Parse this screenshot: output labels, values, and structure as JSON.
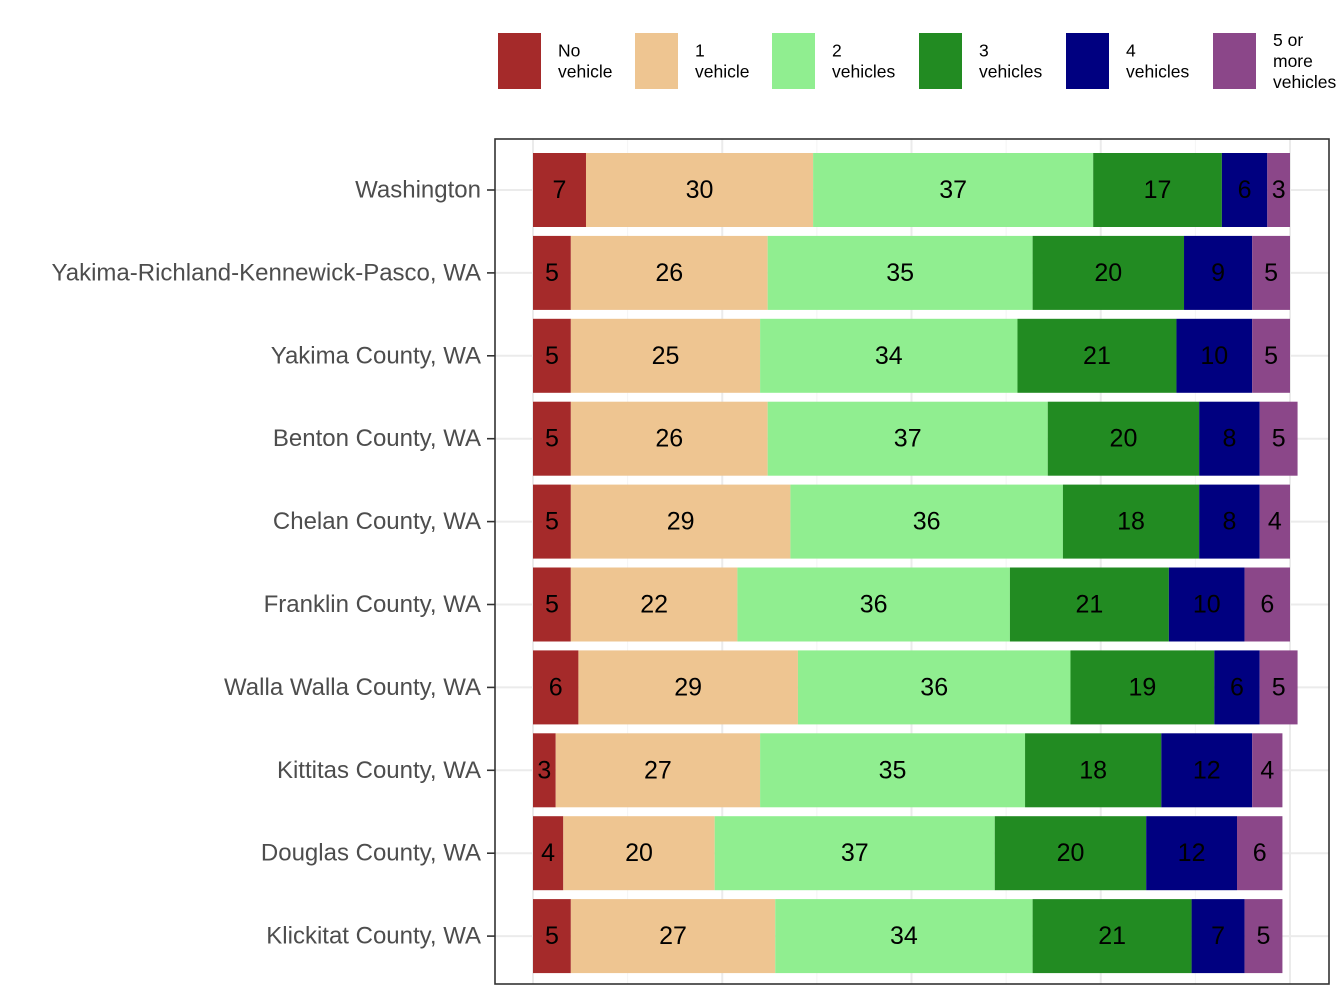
{
  "chart_data": {
    "type": "bar",
    "orientation": "horizontal",
    "stacked": true,
    "title": "",
    "xlabel": "",
    "ylabel": "",
    "xlim": [
      0,
      100
    ],
    "grid": true,
    "legend_position": "top",
    "categories": [
      "Washington",
      "Yakima-Richland-Kennewick-Pasco, WA",
      "Yakima County, WA",
      "Benton County, WA",
      "Chelan County, WA",
      "Franklin County, WA",
      "Walla Walla County, WA",
      "Kittitas County, WA",
      "Douglas County, WA",
      "Klickitat County, WA"
    ],
    "series": [
      {
        "name": "No vehicle",
        "legend_lines": [
          "No",
          "vehicle"
        ],
        "color": "#A52A2A",
        "values": [
          7,
          5,
          5,
          5,
          5,
          5,
          6,
          3,
          4,
          5
        ]
      },
      {
        "name": "1 vehicle",
        "legend_lines": [
          "1",
          "vehicle"
        ],
        "color": "#EEC591",
        "values": [
          30,
          26,
          25,
          26,
          29,
          22,
          29,
          27,
          20,
          27
        ]
      },
      {
        "name": "2 vehicles",
        "legend_lines": [
          "2",
          "vehicles"
        ],
        "color": "#90EE90",
        "values": [
          37,
          35,
          34,
          37,
          36,
          36,
          36,
          35,
          37,
          34
        ]
      },
      {
        "name": "3 vehicles",
        "legend_lines": [
          "3",
          "vehicles"
        ],
        "color": "#228B22",
        "values": [
          17,
          20,
          21,
          20,
          18,
          21,
          19,
          18,
          20,
          21
        ]
      },
      {
        "name": "4 vehicles",
        "legend_lines": [
          "4",
          "vehicles"
        ],
        "color": "#000080",
        "values": [
          6,
          9,
          10,
          8,
          8,
          10,
          6,
          12,
          12,
          7
        ]
      },
      {
        "name": "5 or more vehicles",
        "legend_lines": [
          "5 or",
          "more",
          "vehicles"
        ],
        "color": "#8B4789",
        "values": [
          3,
          5,
          5,
          5,
          4,
          6,
          5,
          4,
          6,
          5
        ]
      }
    ]
  }
}
